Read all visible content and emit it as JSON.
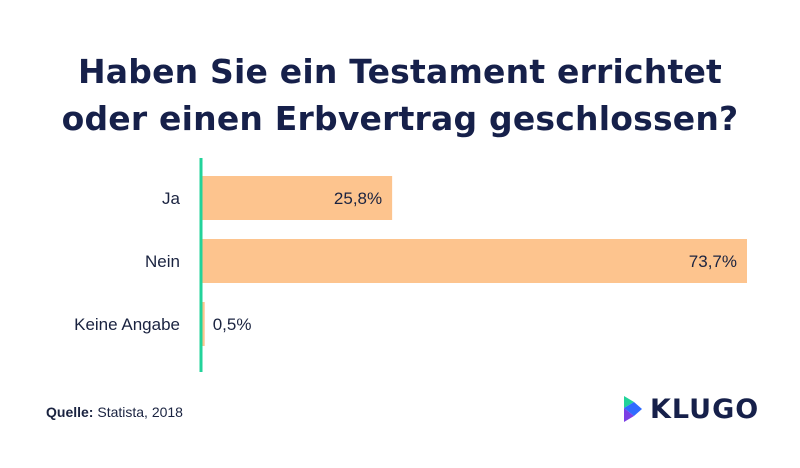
{
  "chart_data": {
    "type": "bar",
    "orientation": "horizontal",
    "title_lines": [
      "Haben Sie ein Testament errichtet",
      "oder einen Erbvertrag geschlossen?"
    ],
    "categories": [
      "Ja",
      "Nein",
      "Keine Angabe"
    ],
    "values": [
      25.8,
      73.7,
      0.5
    ],
    "value_labels": [
      "25,8%",
      "73,7%",
      "0,5%"
    ],
    "xlim": [
      0,
      73.7
    ],
    "grid": false,
    "colors": {
      "bar": "#fdc48e",
      "axis": "#22d39a",
      "text": "#1a2340"
    }
  },
  "source": {
    "label": "Quelle:",
    "text": "Statista, 2018"
  },
  "brand": {
    "name": "KLUGO",
    "colors": [
      "#22d39a",
      "#2f6bff",
      "#7b3fe4"
    ]
  }
}
